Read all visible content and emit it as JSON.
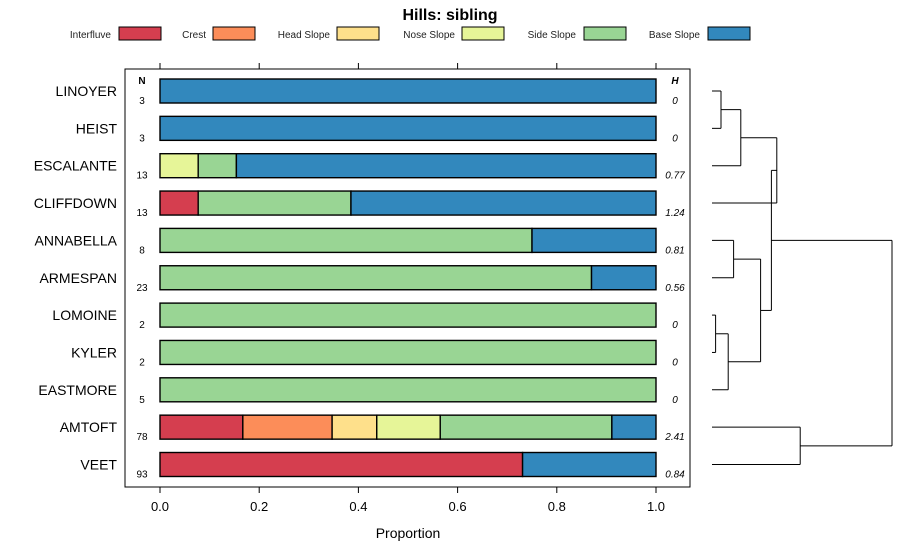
{
  "chart_data": {
    "type": "bar",
    "stacked": true,
    "orientation": "horizontal",
    "title": "Hills: sibling",
    "xlabel": "Proportion",
    "ylabel": "",
    "xlim": [
      0,
      1
    ],
    "xticks": [
      "0.0",
      "0.2",
      "0.4",
      "0.6",
      "0.8",
      "1.0"
    ],
    "n_header": "N",
    "h_header": "H",
    "legend": [
      {
        "name": "Interfluve",
        "color": "#d53e4f"
      },
      {
        "name": "Crest",
        "color": "#fc8d59"
      },
      {
        "name": "Head Slope",
        "color": "#fee08b"
      },
      {
        "name": "Nose Slope",
        "color": "#e6f598"
      },
      {
        "name": "Side Slope",
        "color": "#99d594"
      },
      {
        "name": "Base Slope",
        "color": "#3288bd"
      }
    ],
    "categories": [
      "LINOYER",
      "HEIST",
      "ESCALANTE",
      "CLIFFDOWN",
      "ANNABELLA",
      "ARMESPAN",
      "LOMOINE",
      "KYLER",
      "EASTMORE",
      "AMTOFT",
      "VEET"
    ],
    "n": [
      "3",
      "3",
      "13",
      "13",
      "8",
      "23",
      "2",
      "2",
      "5",
      "78",
      "93"
    ],
    "h": [
      "0",
      "0",
      "0.77",
      "1.24",
      "0.81",
      "0.56",
      "0",
      "0",
      "0",
      "2.41",
      "0.84"
    ],
    "series": [
      {
        "name": "Interfluve",
        "values": [
          0,
          0,
          0,
          0.077,
          0,
          0,
          0,
          0,
          0,
          0.167,
          0.731
        ]
      },
      {
        "name": "Crest",
        "values": [
          0,
          0,
          0,
          0,
          0,
          0,
          0,
          0,
          0,
          0.18,
          0
        ]
      },
      {
        "name": "Head Slope",
        "values": [
          0,
          0,
          0,
          0,
          0,
          0,
          0,
          0,
          0,
          0.09,
          0
        ]
      },
      {
        "name": "Nose Slope",
        "values": [
          0,
          0,
          0.077,
          0,
          0,
          0,
          0,
          0,
          0,
          0.128,
          0
        ]
      },
      {
        "name": "Side Slope",
        "values": [
          0,
          0,
          0.077,
          0.308,
          0.75,
          0.87,
          1,
          1,
          1,
          0.346,
          0
        ]
      },
      {
        "name": "Base Slope",
        "values": [
          1,
          1,
          0.846,
          0.615,
          0.25,
          0.13,
          0,
          0,
          0,
          0.089,
          0.269
        ]
      }
    ],
    "dendrogram": {
      "leaves": [
        "LINOYER",
        "HEIST",
        "ESCALANTE",
        "CLIFFDOWN",
        "ANNABELLA",
        "ARMESPAN",
        "LOMOINE",
        "KYLER",
        "EASTMORE",
        "AMTOFT",
        "VEET"
      ],
      "merges": [
        {
          "a": "LINOYER",
          "b": "HEIST",
          "height": 0.05
        },
        {
          "a": "LINOYER+HEIST",
          "b": "ESCALANTE",
          "height": 0.16
        },
        {
          "a": "LINOYER+HEIST+ESCALANTE",
          "b": "CLIFFDOWN",
          "height": 0.36
        },
        {
          "a": "ANNABELLA",
          "b": "ARMESPAN",
          "height": 0.12
        },
        {
          "a": "LOMOINE",
          "b": "KYLER",
          "height": 0.02
        },
        {
          "a": "LOMOINE+KYLER",
          "b": "EASTMORE",
          "height": 0.09
        },
        {
          "a": "ANNABELLA+ARMESPAN",
          "b": "LOMOINE+KYLER+EASTMORE",
          "height": 0.27
        },
        {
          "a": "AMTOFT",
          "b": "VEET",
          "height": 0.49
        },
        {
          "a": "LINOYER+HEIST+ESCALANTE+CLIFFDOWN",
          "b": "ANNABELLA+ARMESPAN+LOMOINE+KYLER+EASTMORE",
          "height": 0.33
        },
        {
          "a": "ALL_TOP",
          "b": "AMTOFT+VEET",
          "height": 1.0
        }
      ]
    }
  }
}
